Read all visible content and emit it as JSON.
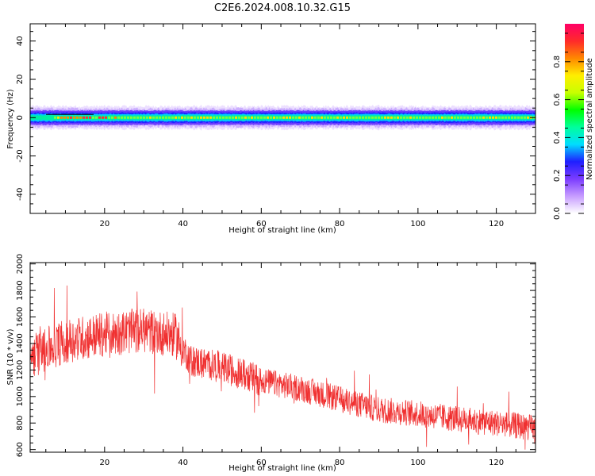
{
  "title": "C2E6.2024.008.10.32.G15",
  "chart_data": [
    {
      "type": "heatmap",
      "title": "C2E6.2024.008.10.32.G15",
      "xlabel": "Height of straight line (km)",
      "ylabel": "Frequency (Hz)",
      "xlim": [
        1,
        130
      ],
      "ylim": [
        -50,
        49
      ],
      "x_ticks": [
        20,
        40,
        60,
        80,
        100,
        120
      ],
      "y_ticks": [
        -40,
        -20,
        0,
        20,
        40
      ],
      "colorbar": {
        "label": "Normalized spectral amplitude",
        "range": [
          0,
          1
        ],
        "ticks": [
          "0.0",
          "0.2",
          "0.4",
          "0.6",
          "0.8"
        ],
        "colors": [
          "#ffffff",
          "#c79cff",
          "#7b3cff",
          "#1f1fff",
          "#00ddff",
          "#00ff9c",
          "#00ff00",
          "#c8ff00",
          "#ffee00",
          "#ff8800",
          "#ff2a2a",
          "#ff0066"
        ]
      },
      "description_series": [
        {
          "x": 1,
          "y_center": 0,
          "half_width": 3.5
        },
        {
          "x": 130,
          "y_center": 0,
          "half_width": 3.5
        }
      ],
      "grid": false
    },
    {
      "type": "line",
      "xlabel": "Height of straight line (km)",
      "ylabel": "SNR (10 * v/v)",
      "xlim": [
        1,
        130
      ],
      "ylim": [
        580,
        2010
      ],
      "x_ticks": [
        20,
        40,
        60,
        80,
        100,
        120
      ],
      "y_ticks": [
        600,
        800,
        1000,
        1200,
        1400,
        1600,
        1800,
        2000
      ],
      "line_color": "#f03030",
      "trend": {
        "x": [
          1,
          10,
          20,
          30,
          38,
          42,
          50,
          60,
          70,
          80,
          90,
          100,
          110,
          120,
          130
        ],
        "y": [
          1300,
          1420,
          1470,
          1500,
          1460,
          1270,
          1220,
          1120,
          1060,
          980,
          900,
          870,
          830,
          800,
          760
        ]
      },
      "grid": false
    }
  ]
}
